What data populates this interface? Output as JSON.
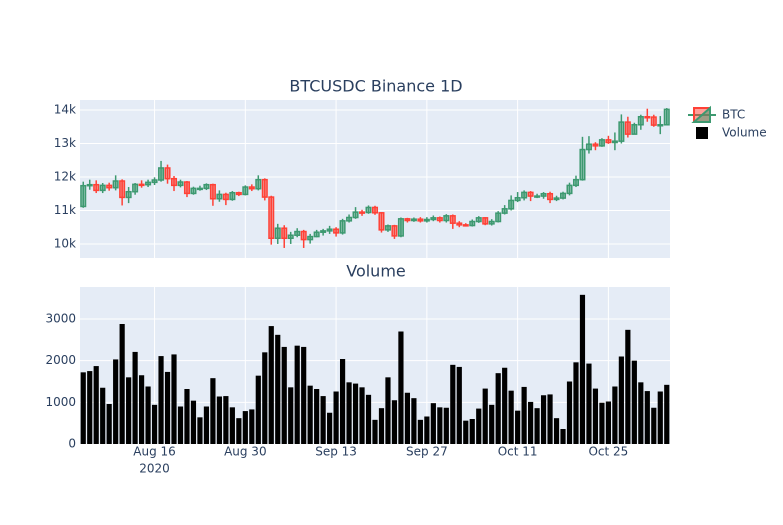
{
  "chart_data": [
    {
      "type": "candlestick",
      "title": "BTCUSDC Binance 1D",
      "name": "BTC",
      "increasing_color": "#3d9970",
      "decreasing_color": "#ff4136",
      "x": [
        "2020-08-05",
        "2020-08-06",
        "2020-08-07",
        "2020-08-08",
        "2020-08-09",
        "2020-08-10",
        "2020-08-11",
        "2020-08-12",
        "2020-08-13",
        "2020-08-14",
        "2020-08-15",
        "2020-08-16",
        "2020-08-17",
        "2020-08-18",
        "2020-08-19",
        "2020-08-20",
        "2020-08-21",
        "2020-08-22",
        "2020-08-23",
        "2020-08-24",
        "2020-08-25",
        "2020-08-26",
        "2020-08-27",
        "2020-08-28",
        "2020-08-29",
        "2020-08-30",
        "2020-08-31",
        "2020-09-01",
        "2020-09-02",
        "2020-09-03",
        "2020-09-04",
        "2020-09-05",
        "2020-09-06",
        "2020-09-07",
        "2020-09-08",
        "2020-09-09",
        "2020-09-10",
        "2020-09-11",
        "2020-09-12",
        "2020-09-13",
        "2020-09-14",
        "2020-09-15",
        "2020-09-16",
        "2020-09-17",
        "2020-09-18",
        "2020-09-19",
        "2020-09-20",
        "2020-09-21",
        "2020-09-22",
        "2020-09-23",
        "2020-09-24",
        "2020-09-25",
        "2020-09-26",
        "2020-09-27",
        "2020-09-28",
        "2020-09-29",
        "2020-09-30",
        "2020-10-01",
        "2020-10-02",
        "2020-10-03",
        "2020-10-04",
        "2020-10-05",
        "2020-10-06",
        "2020-10-07",
        "2020-10-08",
        "2020-10-09",
        "2020-10-10",
        "2020-10-11",
        "2020-10-12",
        "2020-10-13",
        "2020-10-14",
        "2020-10-15",
        "2020-10-16",
        "2020-10-17",
        "2020-10-18",
        "2020-10-19",
        "2020-10-20",
        "2020-10-21",
        "2020-10-22",
        "2020-10-23",
        "2020-10-24",
        "2020-10-25",
        "2020-10-26",
        "2020-10-27",
        "2020-10-28",
        "2020-10-29",
        "2020-10-30",
        "2020-10-31",
        "2020-11-01",
        "2020-11-02",
        "2020-11-03"
      ],
      "open": [
        11120,
        11740,
        11770,
        11600,
        11750,
        11680,
        11880,
        11390,
        11560,
        11780,
        11770,
        11840,
        11910,
        12270,
        11950,
        11750,
        11850,
        11510,
        11660,
        11660,
        11770,
        11350,
        11480,
        11330,
        11530,
        11480,
        11700,
        11650,
        11920,
        11400,
        10170,
        10470,
        10170,
        10260,
        10370,
        10130,
        10220,
        10350,
        10390,
        10440,
        10330,
        10690,
        10790,
        10950,
        10940,
        11090,
        10930,
        10420,
        10540,
        10240,
        10750,
        10700,
        10740,
        10690,
        10730,
        10780,
        10700,
        10840,
        10620,
        10570,
        10550,
        10670,
        10780,
        10600,
        10670,
        10920,
        11050,
        11300,
        11380,
        11540,
        11430,
        11430,
        11500,
        11330,
        11370,
        11510,
        11750,
        11920,
        12820,
        12980,
        12930,
        13110,
        13030,
        13070,
        13640,
        13280,
        13560,
        13800,
        13790,
        13550,
        13560
      ],
      "high": [
        11860,
        11920,
        11900,
        11820,
        11830,
        12050,
        11930,
        11700,
        11820,
        11900,
        11920,
        11990,
        12480,
        12370,
        12030,
        11920,
        11880,
        11710,
        11740,
        11810,
        11800,
        11600,
        11530,
        11580,
        11560,
        11750,
        11780,
        12050,
        11960,
        11440,
        10600,
        10560,
        10360,
        10470,
        10420,
        10300,
        10420,
        10450,
        10540,
        10500,
        10750,
        10880,
        11100,
        11020,
        11150,
        11140,
        10950,
        10580,
        10570,
        10790,
        10780,
        10790,
        10800,
        10800,
        10850,
        10820,
        10890,
        10880,
        10680,
        10620,
        10730,
        10830,
        10800,
        10740,
        10980,
        11160,
        11450,
        11550,
        11600,
        11580,
        11500,
        11550,
        11560,
        11440,
        11560,
        11830,
        12040,
        13200,
        13220,
        13040,
        13160,
        13230,
        13330,
        13870,
        13800,
        13620,
        13860,
        14040,
        13860,
        13820,
        14060
      ],
      "low": [
        11080,
        11620,
        11520,
        11520,
        11590,
        11600,
        11150,
        11220,
        11470,
        11680,
        11700,
        11760,
        11860,
        11800,
        11580,
        11690,
        11400,
        11470,
        11590,
        11610,
        11140,
        11260,
        11160,
        11290,
        11430,
        11450,
        11580,
        11600,
        11300,
        9980,
        10000,
        9880,
        10000,
        10200,
        9880,
        10010,
        10200,
        10250,
        10300,
        10220,
        10280,
        10640,
        10750,
        10840,
        10900,
        10870,
        10340,
        10360,
        10150,
        10200,
        10640,
        10660,
        10640,
        10640,
        10680,
        10640,
        10640,
        10450,
        10500,
        10520,
        10520,
        10630,
        10560,
        10550,
        10640,
        10880,
        11000,
        11250,
        11300,
        11280,
        11370,
        11350,
        11220,
        11280,
        11330,
        11450,
        11700,
        11890,
        12700,
        12800,
        12900,
        12990,
        12800,
        13000,
        13180,
        13270,
        13410,
        13650,
        13500,
        13280,
        13560
      ],
      "close": [
        11740,
        11770,
        11600,
        11750,
        11680,
        11880,
        11390,
        11560,
        11780,
        11770,
        11840,
        11910,
        12270,
        11950,
        11750,
        11850,
        11510,
        11660,
        11660,
        11770,
        11350,
        11480,
        11330,
        11530,
        11480,
        11700,
        11650,
        11920,
        11400,
        10170,
        10470,
        10170,
        10260,
        10370,
        10130,
        10220,
        10350,
        10390,
        10440,
        10330,
        10690,
        10790,
        10950,
        10940,
        11090,
        10930,
        10420,
        10540,
        10240,
        10750,
        10700,
        10740,
        10690,
        10730,
        10780,
        10700,
        10840,
        10620,
        10570,
        10550,
        10670,
        10780,
        10600,
        10670,
        10920,
        11050,
        11300,
        11380,
        11540,
        11430,
        11430,
        11500,
        11330,
        11370,
        11510,
        11750,
        11920,
        12820,
        12980,
        12930,
        13110,
        13030,
        13070,
        13640,
        13280,
        13560,
        13800,
        13790,
        13550,
        13560,
        14020
      ],
      "xlim": [
        "2020-08-04T12:00:00Z",
        "2020-11-03T12:00:00Z"
      ],
      "ylim": [
        9580,
        14300
      ],
      "yticks": [
        {
          "value": 10000,
          "label": "10k"
        },
        {
          "value": 11000,
          "label": "11k"
        },
        {
          "value": 12000,
          "label": "12k"
        },
        {
          "value": 13000,
          "label": "13k"
        },
        {
          "value": 14000,
          "label": "14k"
        }
      ],
      "grid": true
    },
    {
      "type": "bar",
      "title": "Volume",
      "name": "Volume",
      "color": "#000000",
      "values": [
        1720,
        1750,
        1870,
        1350,
        960,
        2030,
        2880,
        1600,
        2210,
        1650,
        1380,
        940,
        2110,
        1730,
        2150,
        900,
        1320,
        1040,
        640,
        900,
        1580,
        1140,
        1150,
        880,
        620,
        790,
        830,
        1640,
        2200,
        2830,
        2620,
        2330,
        1360,
        2360,
        2330,
        1400,
        1320,
        1150,
        750,
        1260,
        2040,
        1480,
        1450,
        1360,
        1180,
        580,
        860,
        1600,
        1050,
        2700,
        1230,
        1100,
        580,
        660,
        980,
        880,
        870,
        1900,
        1850,
        560,
        600,
        850,
        1330,
        940,
        1700,
        1830,
        1280,
        800,
        1370,
        1010,
        860,
        1170,
        1190,
        620,
        360,
        1500,
        1960,
        3580,
        1930,
        1330,
        990,
        1020,
        1380,
        2100,
        2740,
        2000,
        1480,
        1270,
        870,
        1260,
        1420
      ],
      "ylim": [
        0,
        3768
      ],
      "yticks": [
        0,
        1000,
        2000,
        3000
      ],
      "xticks": [
        {
          "value": "2020-08-16",
          "label": "Aug 16"
        },
        {
          "value": "2020-08-30",
          "label": "Aug 30"
        },
        {
          "value": "2020-09-13",
          "label": "Sep 13"
        },
        {
          "value": "2020-09-27",
          "label": "Sep 27"
        },
        {
          "value": "2020-10-11",
          "label": "Oct 11"
        },
        {
          "value": "2020-10-25",
          "label": "Oct 25"
        }
      ],
      "x_year_label": "2020",
      "grid": true
    }
  ]
}
